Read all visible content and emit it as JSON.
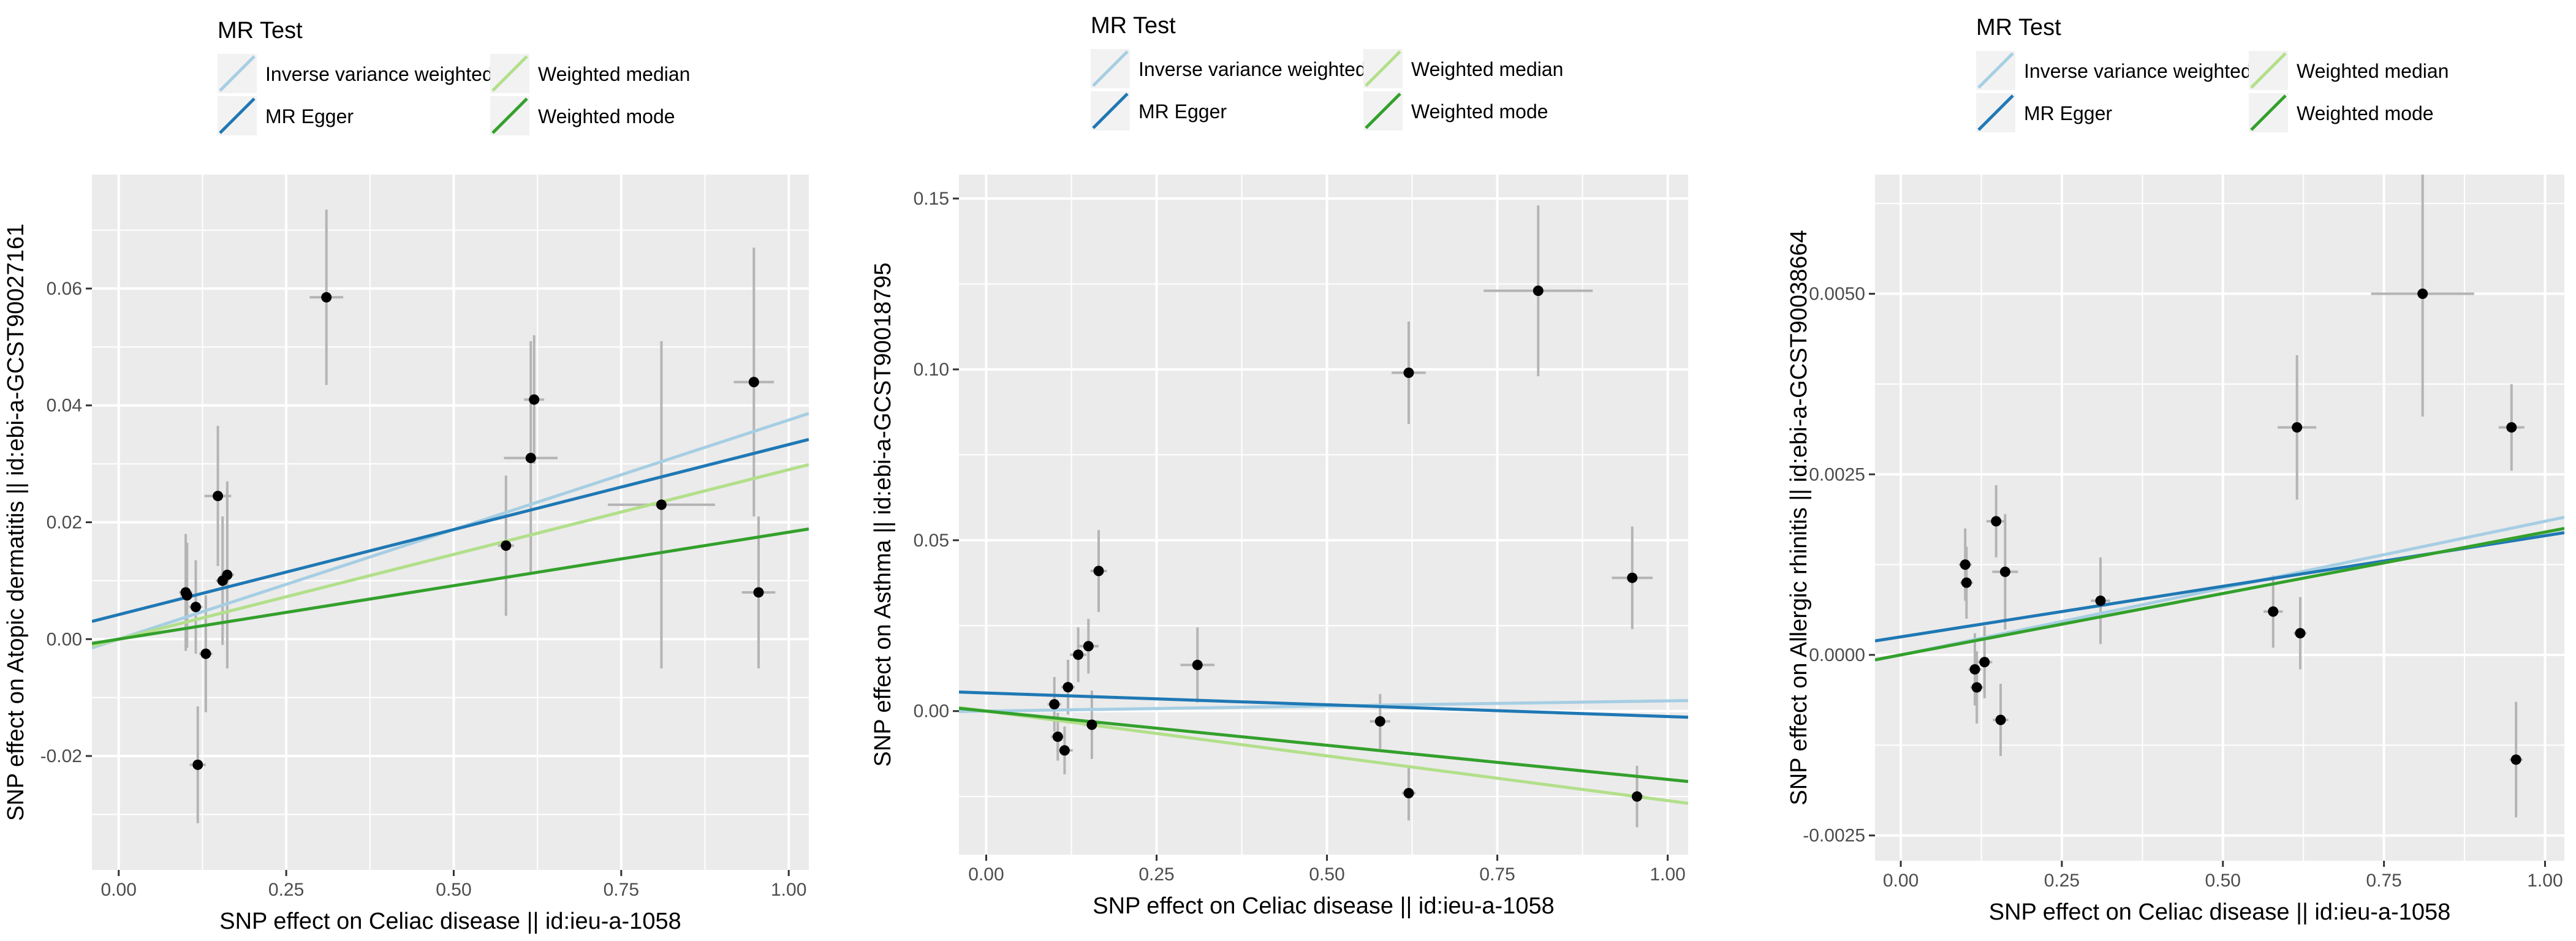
{
  "legend": {
    "title": "MR Test",
    "entries": [
      {
        "label": "Inverse variance weighted",
        "color": "#a6cee3"
      },
      {
        "label": "MR Egger",
        "color": "#1f78b4"
      },
      {
        "label": "Weighted median",
        "color": "#b2df8a"
      },
      {
        "label": "Weighted mode",
        "color": "#33a02c"
      }
    ]
  },
  "colors": {
    "panel_background": "#ebebeb",
    "grid": "#ffffff",
    "point": "#000000",
    "error_bar": "#b4b4b4",
    "axis_text": "#4d4d4d"
  },
  "chart_data": [
    {
      "type": "scatter",
      "xlabel": "SNP effect on Celiac disease || id:ieu-a-1058",
      "ylabel": "SNP effect on Atopic dermatitis || id:ebi-a-GCST90027161",
      "xlim": [
        -0.04,
        1.03
      ],
      "ylim": [
        -0.0395,
        0.0795
      ],
      "xticks": [
        0,
        0.25,
        0.5,
        0.75,
        1
      ],
      "xtick_labels": [
        "0.00",
        "0.25",
        "0.50",
        "0.75",
        "1.00"
      ],
      "yticks": [
        -0.02,
        0,
        0.02,
        0.04,
        0.06
      ],
      "ytick_labels": [
        "-0.02",
        "0.00",
        "0.02",
        "0.04",
        "0.06"
      ],
      "grid": true,
      "points": [
        {
          "x": 0.1,
          "y": 0.008,
          "xerr": 0.01,
          "yerr": 0.01
        },
        {
          "x": 0.102,
          "y": 0.0075,
          "xerr": 0.01,
          "yerr": 0.009
        },
        {
          "x": 0.115,
          "y": 0.0055,
          "xerr": 0.01,
          "yerr": 0.008
        },
        {
          "x": 0.118,
          "y": -0.0215,
          "xerr": 0.012,
          "yerr": 0.01
        },
        {
          "x": 0.13,
          "y": -0.0025,
          "xerr": 0.01,
          "yerr": 0.01
        },
        {
          "x": 0.148,
          "y": 0.0245,
          "xerr": 0.02,
          "yerr": 0.012
        },
        {
          "x": 0.155,
          "y": 0.01,
          "xerr": 0.01,
          "yerr": 0.011
        },
        {
          "x": 0.162,
          "y": 0.011,
          "xerr": 0.01,
          "yerr": 0.016
        },
        {
          "x": 0.31,
          "y": 0.0585,
          "xerr": 0.025,
          "yerr": 0.015
        },
        {
          "x": 0.578,
          "y": 0.016,
          "xerr": 0.012,
          "yerr": 0.012
        },
        {
          "x": 0.615,
          "y": 0.031,
          "xerr": 0.04,
          "yerr": 0.02
        },
        {
          "x": 0.62,
          "y": 0.041,
          "xerr": 0.015,
          "yerr": 0.011
        },
        {
          "x": 0.81,
          "y": 0.023,
          "xerr": 0.08,
          "yerr": 0.028
        },
        {
          "x": 0.948,
          "y": 0.044,
          "xerr": 0.03,
          "yerr": 0.023
        },
        {
          "x": 0.955,
          "y": 0.008,
          "xerr": 0.025,
          "yerr": 0.013
        }
      ],
      "lines": [
        {
          "method": "Inverse variance weighted",
          "intercept": 0.0,
          "slope": 0.0375
        },
        {
          "method": "MR Egger",
          "intercept": 0.0042,
          "slope": 0.0291
        },
        {
          "method": "Weighted median",
          "intercept": 0.0,
          "slope": 0.029
        },
        {
          "method": "Weighted mode",
          "intercept": 0.0,
          "slope": 0.0183
        }
      ]
    },
    {
      "type": "scatter",
      "xlabel": "SNP effect on Celiac disease || id:ieu-a-1058",
      "ylabel": "SNP effect on Asthma || id:ebi-a-GCST90018795",
      "xlim": [
        -0.04,
        1.03
      ],
      "ylim": [
        -0.042,
        0.157
      ],
      "xticks": [
        0,
        0.25,
        0.5,
        0.75,
        1
      ],
      "xtick_labels": [
        "0.00",
        "0.25",
        "0.50",
        "0.75",
        "1.00"
      ],
      "yticks": [
        0,
        0.05,
        0.1,
        0.15
      ],
      "ytick_labels": [
        "0.00",
        "0.05",
        "0.10",
        "0.15"
      ],
      "grid": true,
      "points": [
        {
          "x": 0.1,
          "y": 0.002,
          "xerr": 0.01,
          "yerr": 0.008
        },
        {
          "x": 0.105,
          "y": -0.0075,
          "xerr": 0.01,
          "yerr": 0.007
        },
        {
          "x": 0.115,
          "y": -0.0115,
          "xerr": 0.012,
          "yerr": 0.007
        },
        {
          "x": 0.12,
          "y": 0.007,
          "xerr": 0.01,
          "yerr": 0.008
        },
        {
          "x": 0.135,
          "y": 0.0165,
          "xerr": 0.012,
          "yerr": 0.008
        },
        {
          "x": 0.15,
          "y": 0.019,
          "xerr": 0.015,
          "yerr": 0.008
        },
        {
          "x": 0.155,
          "y": -0.004,
          "xerr": 0.012,
          "yerr": 0.01
        },
        {
          "x": 0.165,
          "y": 0.041,
          "xerr": 0.012,
          "yerr": 0.012
        },
        {
          "x": 0.31,
          "y": 0.0135,
          "xerr": 0.025,
          "yerr": 0.011
        },
        {
          "x": 0.578,
          "y": -0.003,
          "xerr": 0.015,
          "yerr": 0.008
        },
        {
          "x": 0.62,
          "y": 0.099,
          "xerr": 0.025,
          "yerr": 0.015
        },
        {
          "x": 0.62,
          "y": -0.024,
          "xerr": 0.01,
          "yerr": 0.008
        },
        {
          "x": 0.81,
          "y": 0.123,
          "xerr": 0.08,
          "yerr": 0.025
        },
        {
          "x": 0.948,
          "y": 0.039,
          "xerr": 0.03,
          "yerr": 0.015
        },
        {
          "x": 0.955,
          "y": -0.025,
          "xerr": 0.01,
          "yerr": 0.009
        }
      ],
      "lines": [
        {
          "method": "Inverse variance weighted",
          "intercept": 0.0,
          "slope": 0.003
        },
        {
          "method": "MR Egger",
          "intercept": 0.0053,
          "slope": -0.0069
        },
        {
          "method": "Weighted median",
          "intercept": 0.0,
          "slope": -0.0262
        },
        {
          "method": "Weighted mode",
          "intercept": 0.0,
          "slope": -0.02
        }
      ]
    },
    {
      "type": "scatter",
      "xlabel": "SNP effect on Celiac disease || id:ieu-a-1058",
      "ylabel": "SNP effect on Allergic rhinitis || id:ebi-a-GCST90038664",
      "xlim": [
        -0.04,
        1.03
      ],
      "ylim": [
        -0.00285,
        0.00665
      ],
      "xticks": [
        0,
        0.25,
        0.5,
        0.75,
        1
      ],
      "xtick_labels": [
        "0.00",
        "0.25",
        "0.50",
        "0.75",
        "1.00"
      ],
      "yticks": [
        -0.0025,
        0,
        0.0025,
        0.005
      ],
      "ytick_labels": [
        "-0.0025",
        "0.0000",
        "0.0025",
        "0.0050"
      ],
      "grid": true,
      "points": [
        {
          "x": 0.1,
          "y": 0.00125,
          "xerr": 0.01,
          "yerr": 0.0005
        },
        {
          "x": 0.102,
          "y": 0.001,
          "xerr": 0.01,
          "yerr": 0.0005
        },
        {
          "x": 0.115,
          "y": -0.0002,
          "xerr": 0.01,
          "yerr": 0.0005
        },
        {
          "x": 0.118,
          "y": -0.00045,
          "xerr": 0.01,
          "yerr": 0.0005
        },
        {
          "x": 0.13,
          "y": -0.0001,
          "xerr": 0.012,
          "yerr": 0.0005
        },
        {
          "x": 0.148,
          "y": 0.00185,
          "xerr": 0.015,
          "yerr": 0.0005
        },
        {
          "x": 0.155,
          "y": -0.0009,
          "xerr": 0.012,
          "yerr": 0.0005
        },
        {
          "x": 0.162,
          "y": 0.00115,
          "xerr": 0.02,
          "yerr": 0.0008
        },
        {
          "x": 0.31,
          "y": 0.00075,
          "xerr": 0.015,
          "yerr": 0.0006
        },
        {
          "x": 0.578,
          "y": 0.0006,
          "xerr": 0.015,
          "yerr": 0.0005
        },
        {
          "x": 0.615,
          "y": 0.00315,
          "xerr": 0.03,
          "yerr": 0.001
        },
        {
          "x": 0.62,
          "y": 0.0003,
          "xerr": 0.01,
          "yerr": 0.0005
        },
        {
          "x": 0.81,
          "y": 0.005,
          "xerr": 0.08,
          "yerr": 0.0017
        },
        {
          "x": 0.948,
          "y": 0.00315,
          "xerr": 0.02,
          "yerr": 0.0006
        },
        {
          "x": 0.955,
          "y": -0.00145,
          "xerr": 0.01,
          "yerr": 0.0008
        }
      ],
      "lines": [
        {
          "method": "Inverse variance weighted",
          "intercept": 0.0,
          "slope": 0.00185
        },
        {
          "method": "MR Egger",
          "intercept": 0.00025,
          "slope": 0.0014
        },
        {
          "method": "Weighted median",
          "intercept": 0.0,
          "slope": 0.0017
        },
        {
          "method": "Weighted mode",
          "intercept": 0.0,
          "slope": 0.0017
        }
      ]
    }
  ]
}
